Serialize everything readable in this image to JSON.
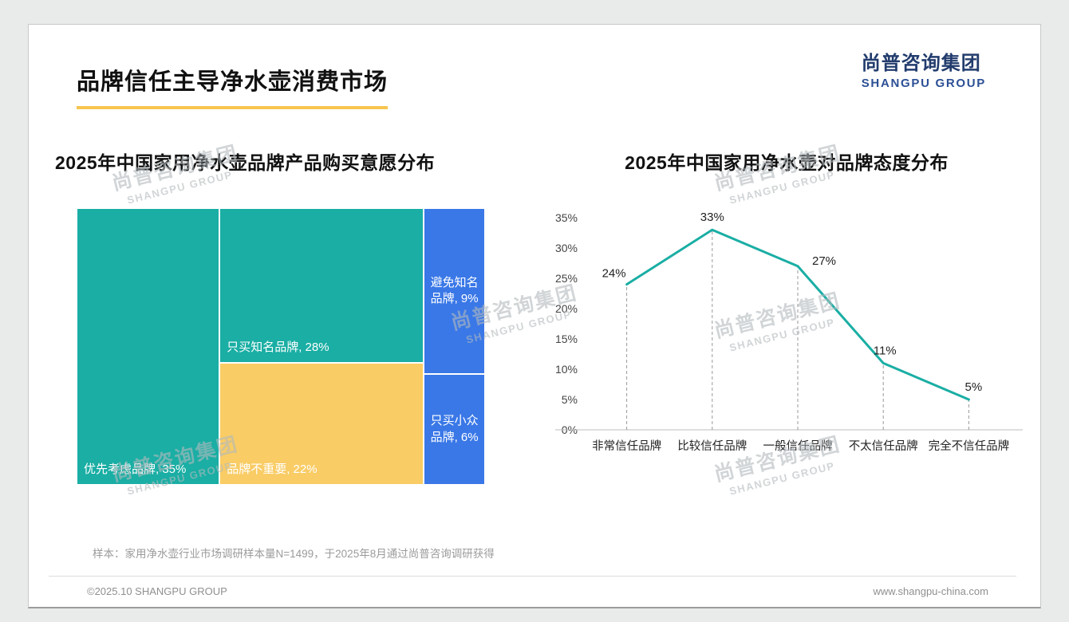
{
  "page": {
    "title": "品牌信任主导净水壶消费市场",
    "footer_note": "样本：家用净水壶行业市场调研样本量N=1499，于2025年8月通过尚普咨询调研获得",
    "copyright": "©2025.10 SHANGPU GROUP",
    "website": "www.shangpu-china.com"
  },
  "brand": {
    "logo_cn": "尚普咨询集团",
    "logo_en": "SHANGPU GROUP",
    "watermark_cn": "尚普咨询集团",
    "watermark_en": "SHANGPU GROUP"
  },
  "colors": {
    "teal": "#1AAEA4",
    "yellow": "#F9CC65",
    "blue": "#3A78E7",
    "underline": "#F6C54F",
    "logo_navy": "#223C6D",
    "logo_blue": "#2C4F95",
    "axis": "#bdbdbd",
    "guide": "#9a9a9a",
    "text": "#222222"
  },
  "chart_data": [
    {
      "type": "treemap",
      "title": "2025年中国家用净水壶品牌产品购买意愿分布",
      "unit": "%",
      "items": [
        {
          "label": "优先考虑品牌",
          "value": 35,
          "color": "teal",
          "label_style": "bottom-left"
        },
        {
          "label": "只买知名品牌",
          "value": 28,
          "color": "teal",
          "label_style": "bottom-left"
        },
        {
          "label": "品牌不重要",
          "value": 22,
          "color": "yellow",
          "label_style": "bottom-left"
        },
        {
          "label": "避免知名品牌",
          "value": 9,
          "color": "blue",
          "label_style": "center"
        },
        {
          "label": "只买小众品牌",
          "value": 6,
          "color": "blue",
          "label_style": "center"
        }
      ],
      "layout_columns": [
        [
          0
        ],
        [
          1,
          2
        ],
        [
          3,
          4
        ]
      ]
    },
    {
      "type": "line",
      "title": "2025年中国家用净水壶对品牌态度分布",
      "categories": [
        "非常信任品牌",
        "比较信任品牌",
        "一般信任品牌",
        "不太信任品牌",
        "完全不信任品牌"
      ],
      "values": [
        24,
        33,
        27,
        11,
        5
      ],
      "ylim": [
        0,
        35
      ],
      "ytick_step": 5,
      "ytick_suffix": "%",
      "line_color": "#1AAEA4",
      "guide_lines": "dashed-vertical",
      "legend": "none",
      "grid": "off"
    }
  ]
}
